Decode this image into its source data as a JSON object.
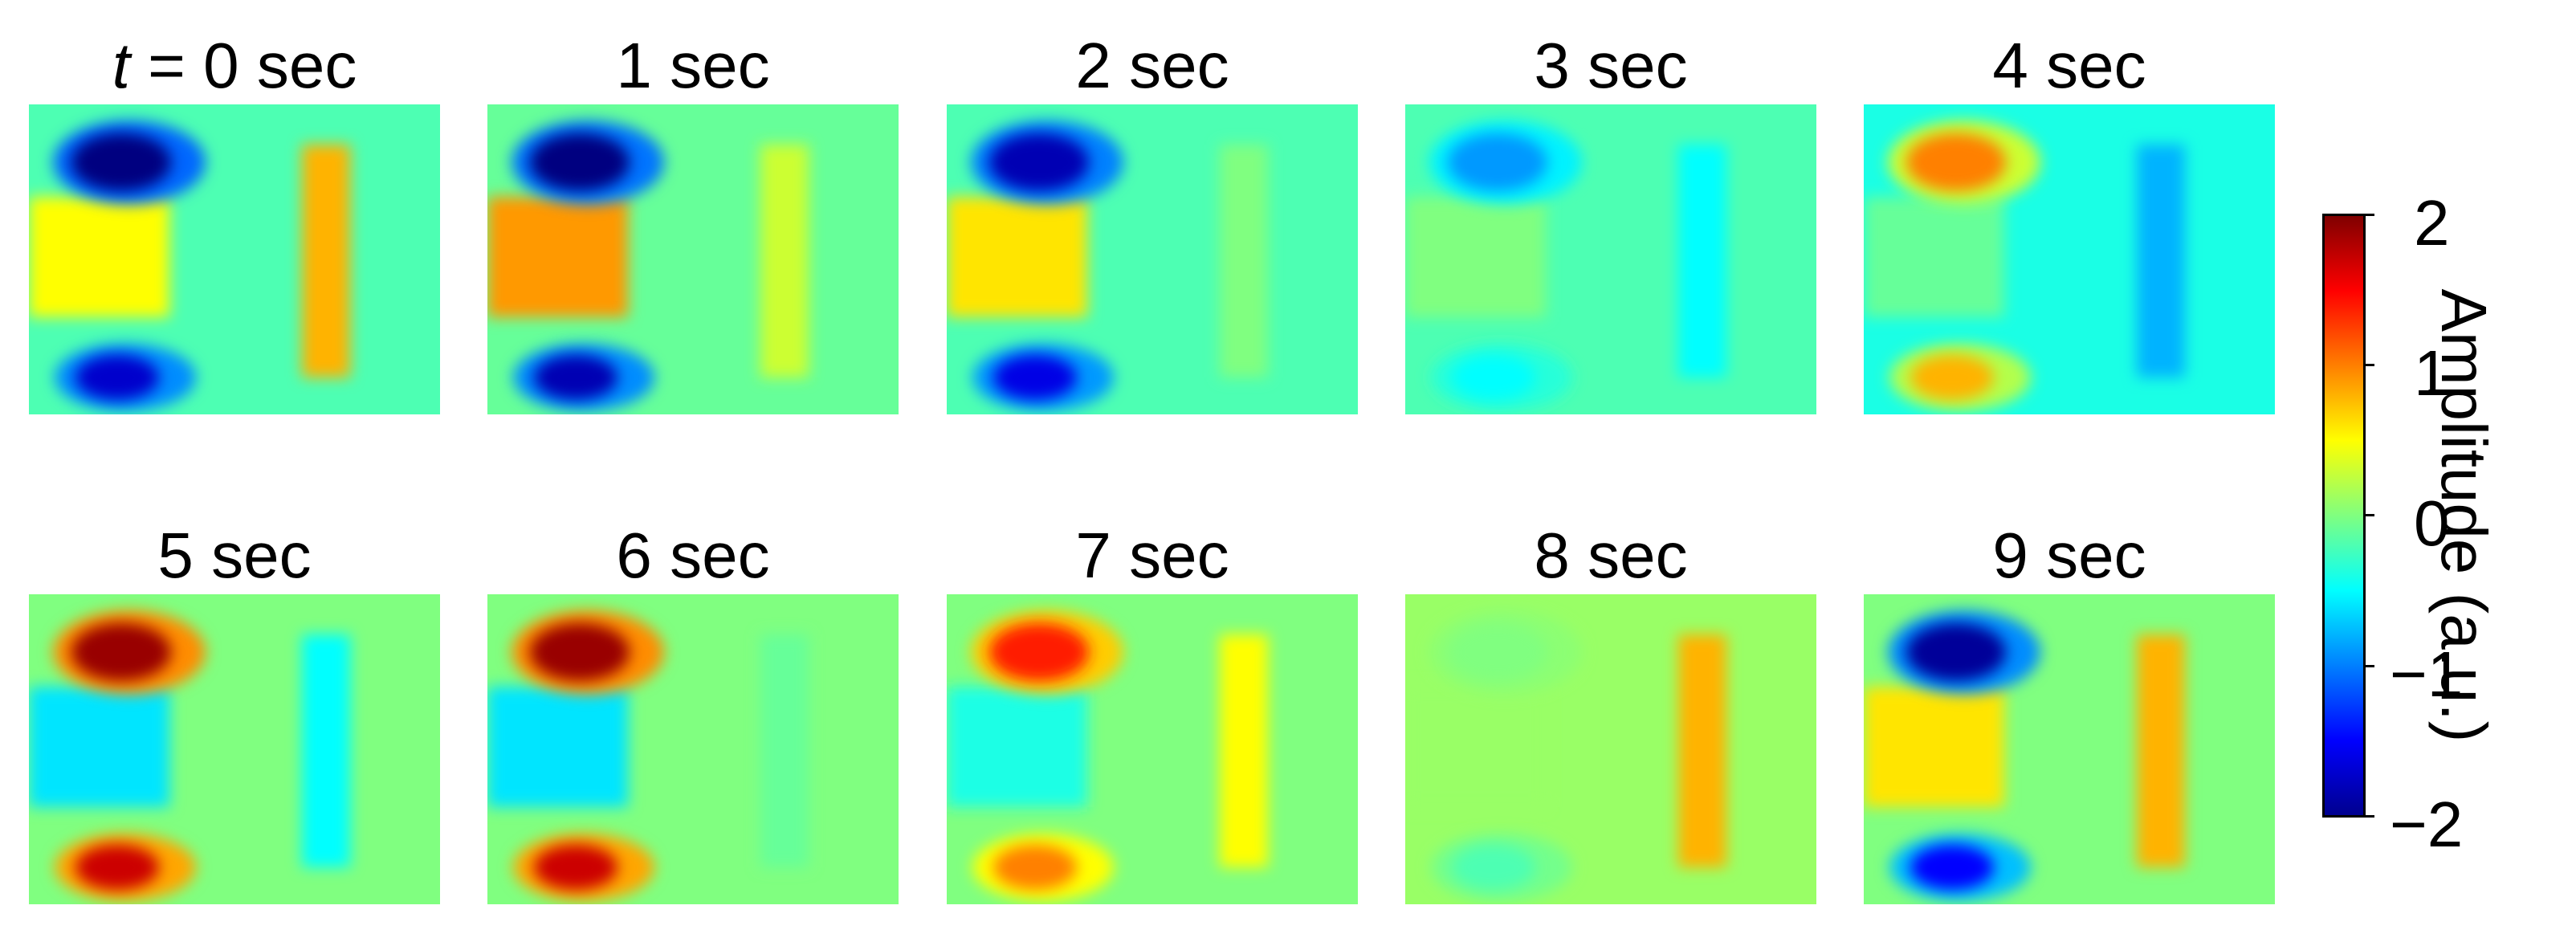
{
  "panels": [
    {
      "title": "= 0 sec",
      "title_prefix": "t",
      "key": "t0"
    },
    {
      "title": "1 sec",
      "key": "t1"
    },
    {
      "title": "2 sec",
      "key": "t2"
    },
    {
      "title": "3 sec",
      "key": "t3"
    },
    {
      "title": "4 sec",
      "key": "t4"
    },
    {
      "title": "5 sec",
      "key": "t5"
    },
    {
      "title": "6 sec",
      "key": "t6"
    },
    {
      "title": "7 sec",
      "key": "t7"
    },
    {
      "title": "8 sec",
      "key": "t8"
    },
    {
      "title": "9 sec",
      "key": "t9"
    }
  ],
  "colorbar": {
    "label": "Amplitude (a.u.)",
    "ticks": [
      "2",
      "1",
      "0",
      "−1",
      "−2"
    ],
    "colormap": "jet",
    "range": [
      -2,
      2
    ]
  },
  "chart_data": {
    "type": "heatmap",
    "colormap": "jet",
    "zlim": [
      -2,
      2
    ],
    "zlabel": "Amplitude (a.u.)",
    "frames": [
      {
        "time": "t = 0 sec",
        "upper_left_spot": -2.0,
        "lower_left_spot": -1.7,
        "left_band": 0.5,
        "right_bar": 0.8,
        "background": -0.2
      },
      {
        "time": "1 sec",
        "upper_left_spot": -2.0,
        "lower_left_spot": -1.8,
        "left_band": 0.9,
        "right_bar": 0.3,
        "background": -0.1
      },
      {
        "time": "2 sec",
        "upper_left_spot": -1.8,
        "lower_left_spot": -1.6,
        "left_band": 0.6,
        "right_bar": 0.0,
        "background": -0.2
      },
      {
        "time": "3 sec",
        "upper_left_spot": -0.9,
        "lower_left_spot": -0.5,
        "left_band": 0.0,
        "right_bar": -0.5,
        "background": -0.2
      },
      {
        "time": "4 sec",
        "upper_left_spot": 1.0,
        "lower_left_spot": 0.8,
        "left_band": -0.1,
        "right_bar": -0.8,
        "background": -0.4
      },
      {
        "time": "5 sec",
        "upper_left_spot": 1.9,
        "lower_left_spot": 1.7,
        "left_band": -0.6,
        "right_bar": -0.5,
        "background": 0.0
      },
      {
        "time": "6 sec",
        "upper_left_spot": 1.9,
        "lower_left_spot": 1.7,
        "left_band": -0.6,
        "right_bar": -0.1,
        "background": 0.0
      },
      {
        "time": "7 sec",
        "upper_left_spot": 1.4,
        "lower_left_spot": 1.0,
        "left_band": -0.4,
        "right_bar": 0.5,
        "background": 0.0
      },
      {
        "time": "8 sec",
        "upper_left_spot": 0.0,
        "lower_left_spot": -0.2,
        "left_band": 0.1,
        "right_bar": 0.8,
        "background": 0.1
      },
      {
        "time": "9 sec",
        "upper_left_spot": -1.9,
        "lower_left_spot": -1.5,
        "left_band": 0.6,
        "right_bar": 0.8,
        "background": 0.0
      }
    ]
  }
}
